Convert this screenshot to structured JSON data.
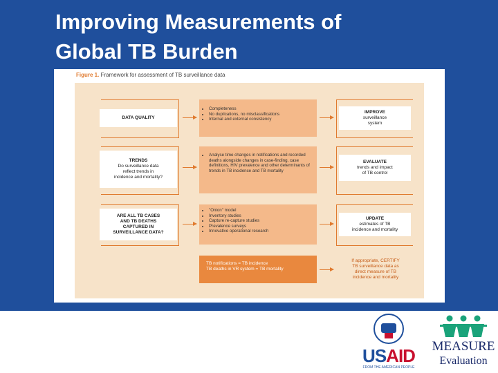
{
  "slide": {
    "title_line1": "Improving Measurements of",
    "title_line2": "Global TB Burden"
  },
  "figure": {
    "caption_label": "Figure 1.",
    "caption_text": "Framework for assessment of TB surveillance data",
    "rows": [
      {
        "question_lines": [
          "DATA QUALITY"
        ],
        "checks": [
          "Completeness",
          "No duplications, no misclassifications",
          "Internal and external consistency"
        ],
        "outcome_bold": "IMPROVE",
        "outcome_rest": [
          "surveillance",
          "system"
        ]
      },
      {
        "question_lines": [
          "TRENDS",
          "Do surveillance data",
          "reflect trends in",
          "incidence and mortality?"
        ],
        "checks": [
          "Analyse time changes in notifications and recorded deaths alongside changes in case-finding, case definitions, HIV prevalence and other determinants of trends in TB incidence and TB mortality"
        ],
        "outcome_bold": "EVALUATE",
        "outcome_rest": [
          "trends and impact",
          "of TB control"
        ]
      },
      {
        "question_lines": [
          "ARE ALL TB CASES",
          "AND TB DEATHS",
          "CAPTURED IN",
          "SURVEILLANCE DATA?"
        ],
        "checks": [
          "\"Onion\" model",
          "Inventory studies",
          "Capture re-capture studies",
          "Prevalence surveys",
          "Innovative operational research"
        ],
        "outcome_bold": "UPDATE",
        "outcome_rest": [
          "estimates of TB",
          "incidence and mortality"
        ]
      }
    ],
    "bottom": {
      "line1": "TB notifications = TB incidence",
      "line2": "TB deaths in VR system = TB mortality",
      "outcome_lines": [
        "If appropriate, CERTIFY",
        "TB surveillance data as",
        "direct measure of TB",
        "incidence and mortality"
      ]
    }
  },
  "logos": {
    "usaid_us": "US",
    "usaid_aid": "AID",
    "usaid_tagline": "FROM THE AMERICAN PEOPLE",
    "usaid_seal_text": "USAID",
    "measure_name": "MEASURE",
    "measure_sub": "Evaluation"
  },
  "colors": {
    "band": "#1f4f9c",
    "accent_orange": "#e07a2e",
    "light_orange": "#f4b98a",
    "panel_bg": "#f7e3c9"
  }
}
